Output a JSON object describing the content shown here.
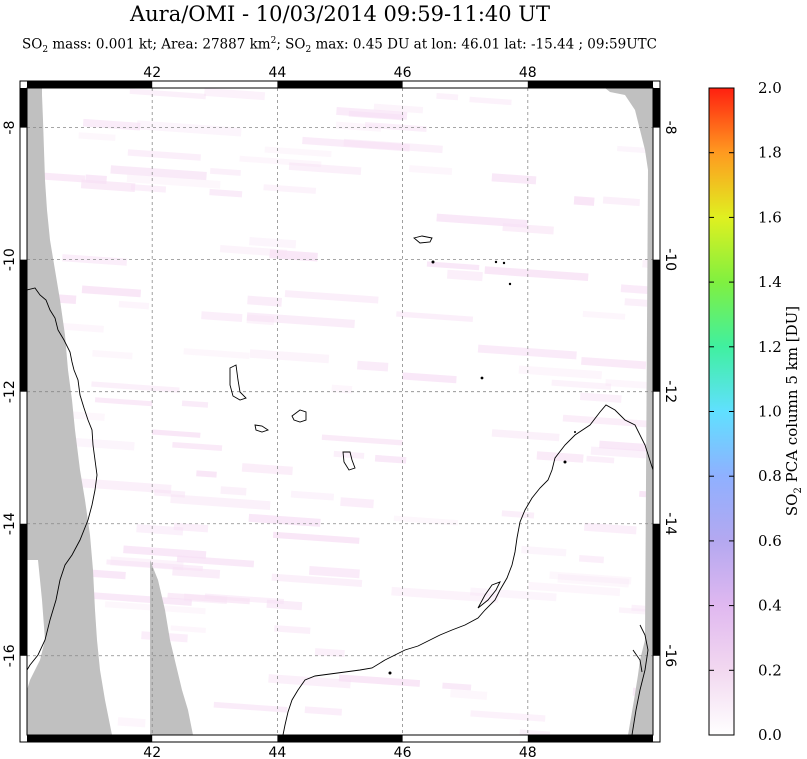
{
  "title": "Aura/OMI - 10/03/2014 09:59-11:40 UT",
  "subtitle": {
    "so": "SO",
    "sub2": "2",
    "mass": " mass: 0.001 kt; Area: 27887 km",
    "sup2": "2",
    "sep": "; SO",
    "sub2b": "2",
    "rest": " max: 0.45 DU at lon: 46.01 lat: -15.44 ; 09:59UTC"
  },
  "chart_data": {
    "type": "heatmap",
    "title": "Aura/OMI - 10/03/2014 09:59-11:40 UT",
    "xlabel": "",
    "ylabel": "",
    "xlim": [
      40.0,
      50.0
    ],
    "ylim": [
      -17.2,
      -7.4
    ],
    "x_ticks": [
      42,
      44,
      46,
      48
    ],
    "x_tick_labels": [
      "42",
      "44",
      "46",
      "48"
    ],
    "y_ticks": [
      -8,
      -10,
      -12,
      -14,
      -16
    ],
    "y_tick_labels": [
      "-8",
      "-10",
      "-12",
      "-14",
      "-16"
    ],
    "grid": true,
    "colorbar": {
      "label": "SO2 PCA column 5 km [DU]",
      "min": 0.0,
      "max": 2.0,
      "ticks": [
        0.0,
        0.2,
        0.4,
        0.6,
        0.8,
        1.0,
        1.2,
        1.4,
        1.6,
        1.8,
        2.0
      ],
      "tick_labels": [
        "0.0",
        "0.2",
        "0.4",
        "0.6",
        "0.8",
        "1.0",
        "1.2",
        "1.4",
        "1.6",
        "1.8",
        "2.0"
      ]
    },
    "so2_max": {
      "value": 0.45,
      "lon": 46.01,
      "lat": -15.44
    },
    "colors": {
      "no_data": "#c0c0c0",
      "low_value": "#f7e0f5",
      "coast": "#000000",
      "grid": "#888888"
    }
  }
}
